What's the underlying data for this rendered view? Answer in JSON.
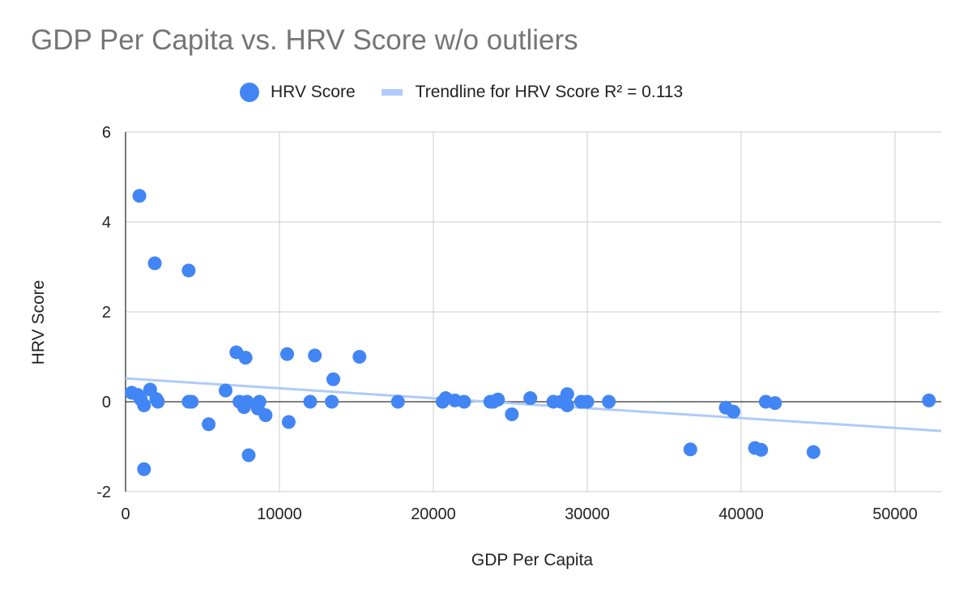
{
  "colors": {
    "points": "#4285f4",
    "trendline": "#aecbfa",
    "gridline": "#cccccc",
    "axis": "#333333"
  },
  "chart_data": {
    "type": "scatter",
    "title": "GDP Per Capita vs. HRV Score w/o outliers",
    "xlabel": "GDP Per Capita",
    "ylabel": "HRV Score",
    "xlim": [
      0,
      53000
    ],
    "ylim": [
      -2,
      6
    ],
    "x_ticks": [
      0,
      10000,
      20000,
      30000,
      40000,
      50000
    ],
    "x_tick_labels": [
      "0",
      "10000",
      "20000",
      "30000",
      "40000",
      "50000"
    ],
    "y_ticks": [
      -2,
      0,
      2,
      4,
      6
    ],
    "y_tick_labels": [
      "-2",
      "0",
      "2",
      "4",
      "6"
    ],
    "grid": true,
    "legend_position": "top",
    "series": [
      {
        "name": "HRV Score",
        "points": [
          [
            400,
            0.2
          ],
          [
            900,
            4.58
          ],
          [
            800,
            0.15
          ],
          [
            1000,
            0.05
          ],
          [
            1200,
            -0.08
          ],
          [
            1200,
            -1.5
          ],
          [
            1600,
            0.27
          ],
          [
            1900,
            3.08
          ],
          [
            2000,
            0.06
          ],
          [
            2100,
            0.0
          ],
          [
            4100,
            2.92
          ],
          [
            4100,
            0.0
          ],
          [
            4300,
            0.0
          ],
          [
            5400,
            -0.5
          ],
          [
            6500,
            0.25
          ],
          [
            7200,
            1.1
          ],
          [
            7400,
            0.0
          ],
          [
            7800,
            0.98
          ],
          [
            7700,
            -0.12
          ],
          [
            7900,
            0.0
          ],
          [
            8000,
            -1.19
          ],
          [
            8600,
            -0.15
          ],
          [
            8700,
            0.0
          ],
          [
            9100,
            -0.3
          ],
          [
            10500,
            1.06
          ],
          [
            10600,
            -0.45
          ],
          [
            12000,
            0.0
          ],
          [
            12300,
            1.03
          ],
          [
            13400,
            0.0
          ],
          [
            13500,
            0.5
          ],
          [
            15200,
            1.0
          ],
          [
            17700,
            0.0
          ],
          [
            20600,
            0.0
          ],
          [
            20800,
            0.08
          ],
          [
            21400,
            0.03
          ],
          [
            22000,
            0.0
          ],
          [
            23700,
            0.0
          ],
          [
            23900,
            0.0
          ],
          [
            24200,
            0.05
          ],
          [
            25100,
            -0.28
          ],
          [
            26300,
            0.08
          ],
          [
            27800,
            0.0
          ],
          [
            28300,
            0.0
          ],
          [
            28700,
            0.17
          ],
          [
            28700,
            -0.08
          ],
          [
            29600,
            0.0
          ],
          [
            30000,
            0.0
          ],
          [
            31400,
            0.0
          ],
          [
            36700,
            -1.06
          ],
          [
            39000,
            -0.13
          ],
          [
            39500,
            -0.22
          ],
          [
            40900,
            -1.03
          ],
          [
            41300,
            -1.07
          ],
          [
            41600,
            0.0
          ],
          [
            42200,
            -0.03
          ],
          [
            44700,
            -1.12
          ],
          [
            52200,
            0.03
          ]
        ]
      }
    ],
    "trendline": {
      "name": "Trendline for HRV Score R² = 0.113",
      "x_range": [
        0,
        53000
      ],
      "y_start": 0.52,
      "y_end": -0.65
    }
  }
}
